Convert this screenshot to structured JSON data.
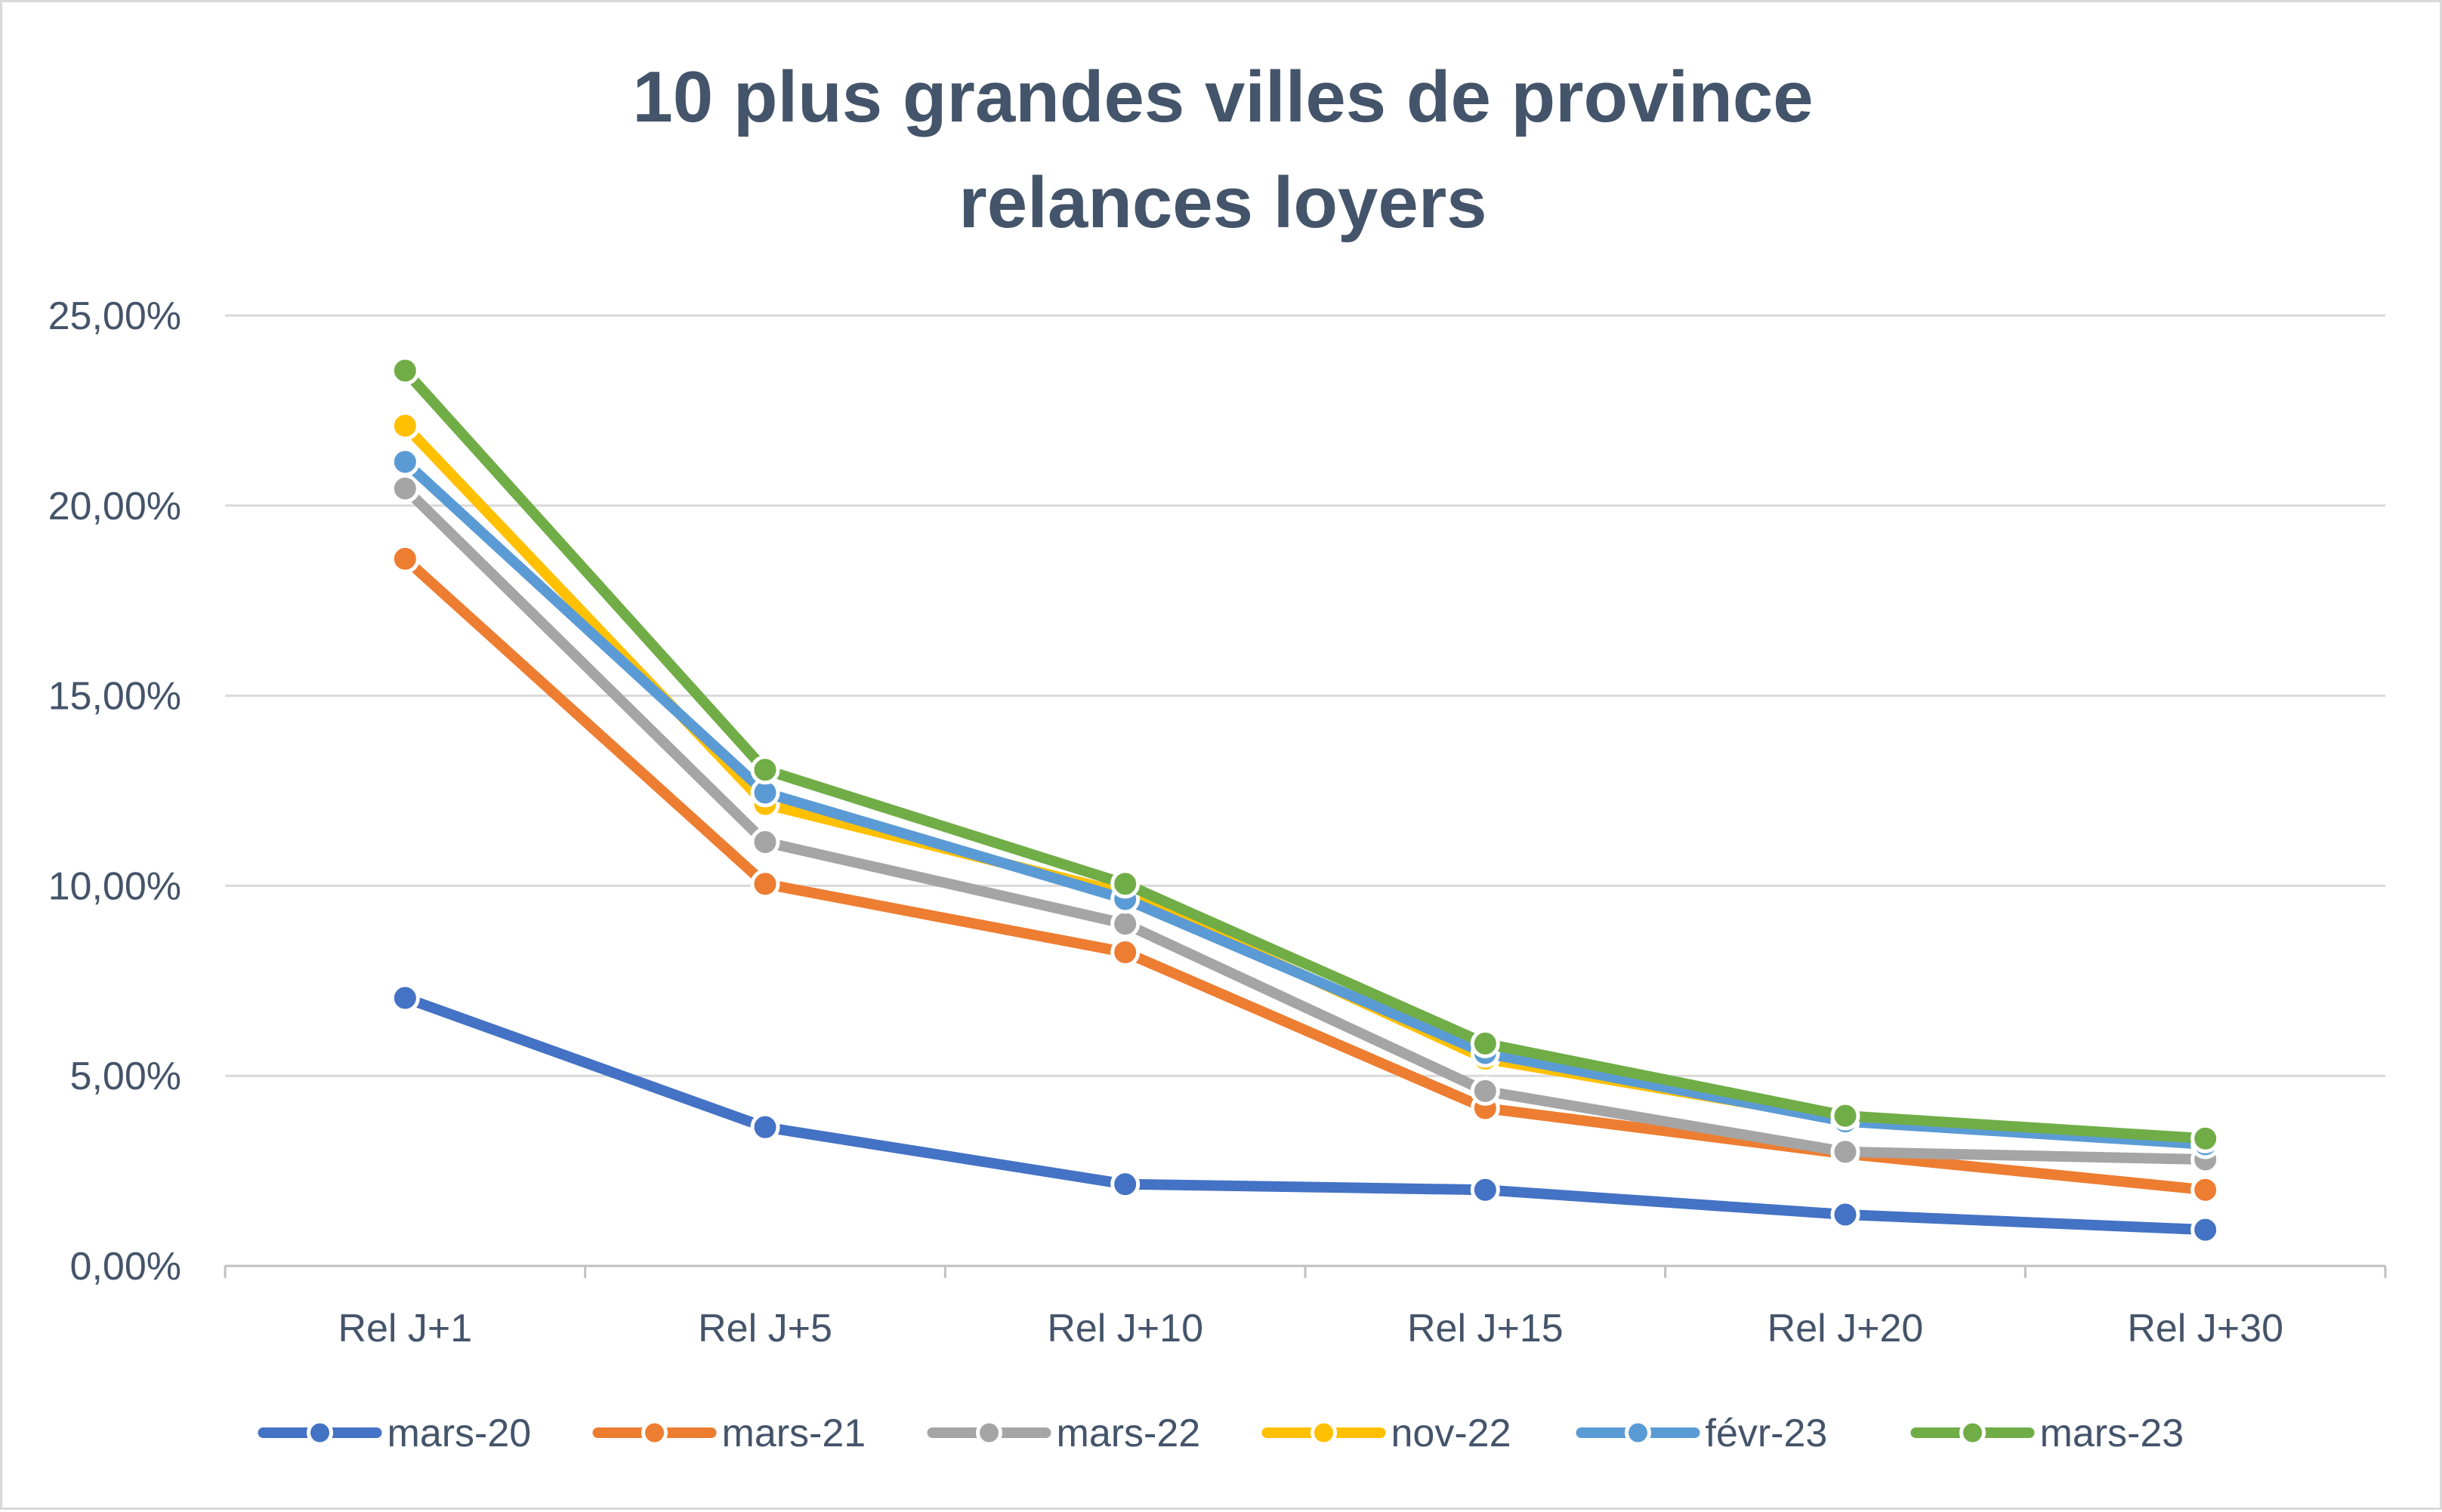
{
  "chart_data": {
    "type": "line",
    "title_lines": [
      "10 plus grandes villes de province",
      "relances loyers"
    ],
    "categories": [
      "Rel J+1",
      "Rel J+5",
      "Rel J+10",
      "Rel J+15",
      "Rel J+20",
      "Rel J+30"
    ],
    "y_ticks": [
      "0,00%",
      "5,00%",
      "10,00%",
      "15,00%",
      "20,00%",
      "25,00%"
    ],
    "ylim": [
      0,
      25
    ],
    "y_unit": "%",
    "grid": true,
    "legend_position": "bottom",
    "series": [
      {
        "name": "mars-20",
        "color": "#4472c4",
        "values": [
          7.05,
          3.65,
          2.15,
          2.0,
          1.35,
          0.95
        ]
      },
      {
        "name": "mars-21",
        "color": "#ed7d31",
        "values": [
          18.6,
          10.05,
          8.25,
          4.15,
          2.95,
          2.0
        ]
      },
      {
        "name": "mars-22",
        "color": "#a5a5a5",
        "values": [
          20.45,
          11.15,
          9.0,
          4.6,
          3.0,
          2.8
        ]
      },
      {
        "name": "nov-22",
        "color": "#ffc000",
        "values": [
          22.1,
          12.15,
          9.8,
          5.45,
          3.85,
          3.2
        ]
      },
      {
        "name": "févr-23",
        "color": "#5b9bd5",
        "values": [
          21.15,
          12.45,
          9.65,
          5.6,
          3.8,
          3.2
        ]
      },
      {
        "name": "mars-23",
        "color": "#70ad47",
        "values": [
          23.55,
          13.05,
          10.05,
          5.85,
          3.95,
          3.35
        ]
      }
    ]
  }
}
